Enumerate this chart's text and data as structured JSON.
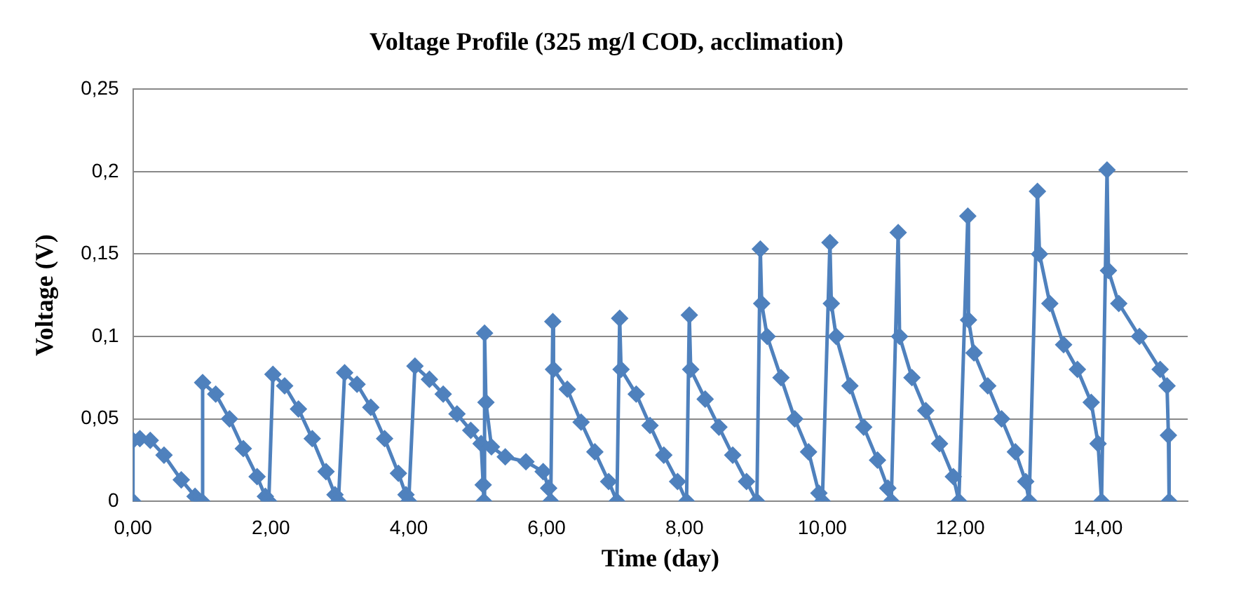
{
  "chart_data": {
    "type": "line",
    "title": "Voltage Profile (325 mg/l COD, acclimation)",
    "xlabel": "Time (day)",
    "ylabel": "Voltage (V)",
    "xlim": [
      0,
      15.3
    ],
    "xticks": [
      {
        "value": 0,
        "label": "0,00"
      },
      {
        "value": 2,
        "label": "2,00"
      },
      {
        "value": 4,
        "label": "4,00"
      },
      {
        "value": 6,
        "label": "6,00"
      },
      {
        "value": 8,
        "label": "8,00"
      },
      {
        "value": 10,
        "label": "10,00"
      },
      {
        "value": 12,
        "label": "12,00"
      },
      {
        "value": 14,
        "label": "14,00"
      }
    ],
    "ylim": [
      0,
      0.25
    ],
    "yticks": [
      0,
      {
        "value": 0.05,
        "label": "0,05"
      },
      {
        "value": 0.1,
        "label": "0,1"
      },
      {
        "value": 0.15,
        "label": "0,15"
      },
      {
        "value": 0.2,
        "label": "0,2"
      },
      {
        "value": 0.25,
        "label": "0,25"
      }
    ],
    "grid": "y",
    "legend": false,
    "marker": "diamond",
    "line_style": "solid",
    "series": [
      {
        "color": "#4f81bd",
        "x": [
          0,
          0,
          0.1,
          0.25,
          0.45,
          0.7,
          0.9,
          1.0,
          1.01,
          1.2,
          1.4,
          1.6,
          1.8,
          1.92,
          1.97,
          2.03,
          2.2,
          2.4,
          2.6,
          2.8,
          2.93,
          2.98,
          3.07,
          3.25,
          3.45,
          3.65,
          3.85,
          3.96,
          4.0,
          4.09,
          4.3,
          4.5,
          4.7,
          4.9,
          5.05,
          5.08,
          5.09,
          5.1,
          5.12,
          5.2,
          5.4,
          5.7,
          5.95,
          6.03,
          6.06,
          6.09,
          6.1,
          6.3,
          6.5,
          6.7,
          6.9,
          7.02,
          7.06,
          7.08,
          7.3,
          7.5,
          7.7,
          7.9,
          8.03,
          8.07,
          8.09,
          8.3,
          8.5,
          8.7,
          8.9,
          9.05,
          9.1,
          9.12,
          9.2,
          9.4,
          9.6,
          9.8,
          9.95,
          10.0,
          10.11,
          10.13,
          10.2,
          10.4,
          10.6,
          10.8,
          10.95,
          11.0,
          11.1,
          11.12,
          11.3,
          11.5,
          11.7,
          11.9,
          11.98,
          12.11,
          12.12,
          12.2,
          12.4,
          12.6,
          12.8,
          12.95,
          13.0,
          13.12,
          13.15,
          13.3,
          13.5,
          13.7,
          13.9,
          14.0,
          14.05,
          14.13,
          14.15,
          14.3,
          14.6,
          14.9,
          15.0,
          15.02,
          15.03
        ],
        "values": [
          0,
          0.037,
          0.038,
          0.037,
          0.028,
          0.013,
          0.003,
          0,
          0.072,
          0.065,
          0.05,
          0.032,
          0.015,
          0.003,
          0,
          0.077,
          0.07,
          0.056,
          0.038,
          0.018,
          0.004,
          0,
          0.078,
          0.071,
          0.057,
          0.038,
          0.017,
          0.004,
          0,
          0.082,
          0.074,
          0.065,
          0.053,
          0.043,
          0.035,
          0.01,
          0,
          0.102,
          0.06,
          0.033,
          0.027,
          0.024,
          0.018,
          0.008,
          0,
          0.109,
          0.08,
          0.068,
          0.048,
          0.03,
          0.012,
          0,
          0.111,
          0.08,
          0.065,
          0.046,
          0.028,
          0.012,
          0,
          0.113,
          0.08,
          0.062,
          0.045,
          0.028,
          0.012,
          0,
          0.153,
          0.12,
          0.1,
          0.075,
          0.05,
          0.03,
          0.005,
          0,
          0.157,
          0.12,
          0.1,
          0.07,
          0.045,
          0.025,
          0.008,
          0,
          0.163,
          0.1,
          0.075,
          0.055,
          0.035,
          0.015,
          0,
          0.173,
          0.11,
          0.09,
          0.07,
          0.05,
          0.03,
          0.012,
          0,
          0.188,
          0.15,
          0.12,
          0.095,
          0.08,
          0.06,
          0.035,
          0,
          0.201,
          0.14,
          0.12,
          0.1,
          0.08,
          0.07,
          0.04,
          0
        ]
      }
    ]
  }
}
